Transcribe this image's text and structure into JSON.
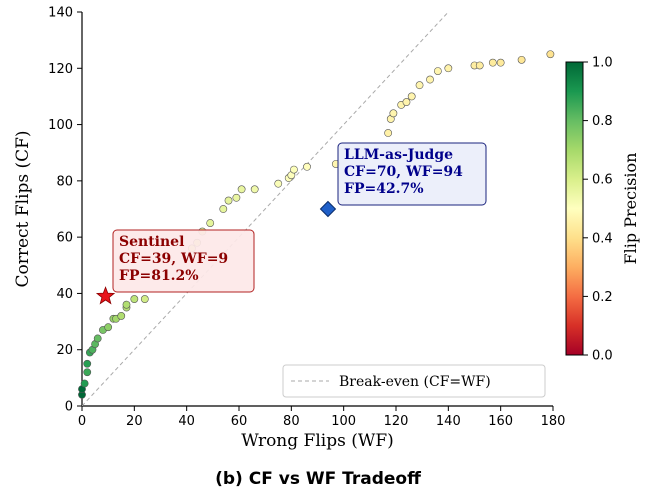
{
  "chart_data": {
    "type": "scatter",
    "caption": "(b) CF vs WF Tradeoff",
    "xlabel": "Wrong Flips (WF)",
    "ylabel": "Correct Flips (CF)",
    "xlim": [
      0,
      180
    ],
    "ylim": [
      0,
      140
    ],
    "xticks": [
      0,
      20,
      40,
      60,
      80,
      100,
      120,
      140,
      160,
      180
    ],
    "yticks": [
      0,
      20,
      40,
      60,
      80,
      100,
      120,
      140
    ],
    "grid": false,
    "colorbar": {
      "label": "Flip Precision",
      "range": [
        0.0,
        1.0
      ],
      "ticks": [
        "0.0",
        "0.2",
        "0.4",
        "0.6",
        "0.8",
        "1.0"
      ],
      "colormap": "RdYlGn",
      "stops": [
        "#a50026",
        "#d73027",
        "#f46d43",
        "#fdae61",
        "#fee08b",
        "#ffffbf",
        "#d9ef8b",
        "#a6d96a",
        "#66bd63",
        "#1a9850",
        "#006837"
      ]
    },
    "break_even": {
      "label": "Break-even (CF=WF)",
      "from": [
        0,
        0
      ],
      "to": [
        140,
        140
      ],
      "color": "#aaaaaa"
    },
    "legend_position": "bottom-right",
    "points": [
      {
        "x": 0,
        "y": 4
      },
      {
        "x": 0,
        "y": 6
      },
      {
        "x": 1,
        "y": 8
      },
      {
        "x": 2,
        "y": 12
      },
      {
        "x": 2,
        "y": 15
      },
      {
        "x": 3,
        "y": 19
      },
      {
        "x": 4,
        "y": 20
      },
      {
        "x": 5,
        "y": 22
      },
      {
        "x": 6,
        "y": 24
      },
      {
        "x": 8,
        "y": 27
      },
      {
        "x": 10,
        "y": 28
      },
      {
        "x": 12,
        "y": 31
      },
      {
        "x": 13,
        "y": 31
      },
      {
        "x": 15,
        "y": 32
      },
      {
        "x": 17,
        "y": 35
      },
      {
        "x": 17,
        "y": 36
      },
      {
        "x": 20,
        "y": 38
      },
      {
        "x": 24,
        "y": 38
      },
      {
        "x": 42,
        "y": 56
      },
      {
        "x": 44,
        "y": 58
      },
      {
        "x": 46,
        "y": 62
      },
      {
        "x": 49,
        "y": 65
      },
      {
        "x": 54,
        "y": 70
      },
      {
        "x": 56,
        "y": 73
      },
      {
        "x": 59,
        "y": 74
      },
      {
        "x": 61,
        "y": 77
      },
      {
        "x": 66,
        "y": 77
      },
      {
        "x": 75,
        "y": 79
      },
      {
        "x": 79,
        "y": 81
      },
      {
        "x": 80,
        "y": 82
      },
      {
        "x": 81,
        "y": 84
      },
      {
        "x": 86,
        "y": 85
      },
      {
        "x": 97,
        "y": 86
      },
      {
        "x": 117,
        "y": 97
      },
      {
        "x": 118,
        "y": 102
      },
      {
        "x": 119,
        "y": 104
      },
      {
        "x": 122,
        "y": 107
      },
      {
        "x": 124,
        "y": 108
      },
      {
        "x": 126,
        "y": 110
      },
      {
        "x": 129,
        "y": 114
      },
      {
        "x": 133,
        "y": 116
      },
      {
        "x": 136,
        "y": 119
      },
      {
        "x": 140,
        "y": 120
      },
      {
        "x": 150,
        "y": 121
      },
      {
        "x": 152,
        "y": 121
      },
      {
        "x": 157,
        "y": 122
      },
      {
        "x": 160,
        "y": 122
      },
      {
        "x": 168,
        "y": 123
      },
      {
        "x": 179,
        "y": 125
      }
    ],
    "annotations": [
      {
        "name": "Sentinel",
        "cf": 39,
        "wf": 9,
        "fp": 81.2,
        "lines": [
          "Sentinel",
          "CF=39, WF=9",
          "FP=81.2%"
        ],
        "marker": "star",
        "marker_color": "#e8141b",
        "text_color": "#8b0000",
        "box_fill": "#fde8e8",
        "box_edge": "#b22222"
      },
      {
        "name": "LLM-as-Judge",
        "cf": 70,
        "wf": 94,
        "fp": 42.7,
        "lines": [
          "LLM-as-Judge",
          "CF=70, WF=94",
          "FP=42.7%"
        ],
        "marker": "diamond",
        "marker_color": "#1f5fc8",
        "text_color": "#00008b",
        "box_fill": "#eaeefa",
        "box_edge": "#1a237e"
      }
    ]
  }
}
